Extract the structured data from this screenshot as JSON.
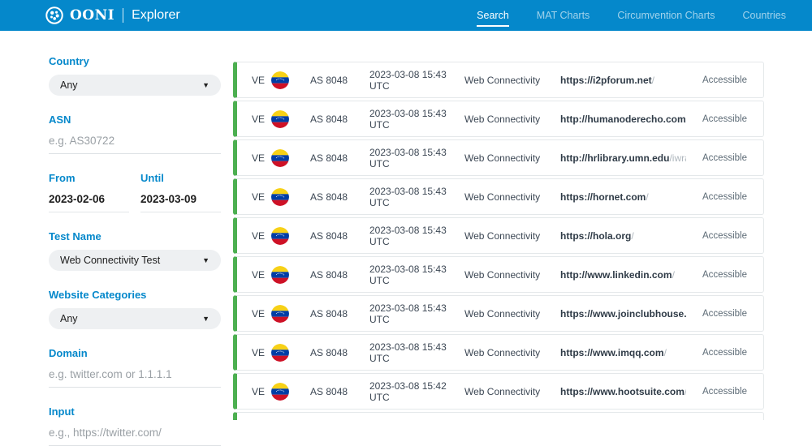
{
  "header": {
    "brand": {
      "name": "OONI",
      "sub": "Explorer"
    },
    "nav": [
      {
        "label": "Search",
        "active": true
      },
      {
        "label": "MAT Charts",
        "active": false
      },
      {
        "label": "Circumvention Charts",
        "active": false
      },
      {
        "label": "Countries",
        "active": false
      }
    ]
  },
  "filters": {
    "country": {
      "label": "Country",
      "value": "Any"
    },
    "asn": {
      "label": "ASN",
      "placeholder": "e.g. AS30722"
    },
    "from": {
      "label": "From",
      "value": "2023-02-06"
    },
    "until": {
      "label": "Until",
      "value": "2023-03-09"
    },
    "test_name": {
      "label": "Test Name",
      "value": "Web Connectivity Test"
    },
    "categories": {
      "label": "Website Categories",
      "value": "Any"
    },
    "domain": {
      "label": "Domain",
      "placeholder": "e.g. twitter.com or 1.1.1.1"
    },
    "input": {
      "label": "Input",
      "placeholder": "e.g., https://twitter.com/"
    }
  },
  "results": {
    "rows": [
      {
        "country": "VE",
        "asn": "AS 8048",
        "time": "2023-03-08 15:43 UTC",
        "test": "Web Connectivity",
        "url_base": "https://i2pforum.net",
        "url_path": "/",
        "status": "Accessible"
      },
      {
        "country": "VE",
        "asn": "AS 8048",
        "time": "2023-03-08 15:43 UTC",
        "test": "Web Connectivity",
        "url_base": "http://humanoderecho.com",
        "url_path": "/",
        "status": "Accessible"
      },
      {
        "country": "VE",
        "asn": "AS 8048",
        "time": "2023-03-08 15:43 UTC",
        "test": "Web Connectivity",
        "url_base": "http://hrlibrary.umn.edu",
        "url_path": "/iwraw/",
        "status": "Accessible"
      },
      {
        "country": "VE",
        "asn": "AS 8048",
        "time": "2023-03-08 15:43 UTC",
        "test": "Web Connectivity",
        "url_base": "https://hornet.com",
        "url_path": "/",
        "status": "Accessible"
      },
      {
        "country": "VE",
        "asn": "AS 8048",
        "time": "2023-03-08 15:43 UTC",
        "test": "Web Connectivity",
        "url_base": "https://hola.org",
        "url_path": "/",
        "status": "Accessible"
      },
      {
        "country": "VE",
        "asn": "AS 8048",
        "time": "2023-03-08 15:43 UTC",
        "test": "Web Connectivity",
        "url_base": "http://www.linkedin.com",
        "url_path": "/",
        "status": "Accessible"
      },
      {
        "country": "VE",
        "asn": "AS 8048",
        "time": "2023-03-08 15:43 UTC",
        "test": "Web Connectivity",
        "url_base": "https://www.joinclubhouse.com",
        "url_path": "/",
        "status": "Accessible"
      },
      {
        "country": "VE",
        "asn": "AS 8048",
        "time": "2023-03-08 15:43 UTC",
        "test": "Web Connectivity",
        "url_base": "https://www.imqq.com",
        "url_path": "/",
        "status": "Accessible"
      },
      {
        "country": "VE",
        "asn": "AS 8048",
        "time": "2023-03-08 15:42 UTC",
        "test": "Web Connectivity",
        "url_base": "https://www.hootsuite.com",
        "url_path": "/",
        "status": "Accessible"
      }
    ]
  },
  "colors": {
    "header_bg": "#0588cb",
    "accent_blue": "#0588cb",
    "ok_green": "#4caf50"
  }
}
